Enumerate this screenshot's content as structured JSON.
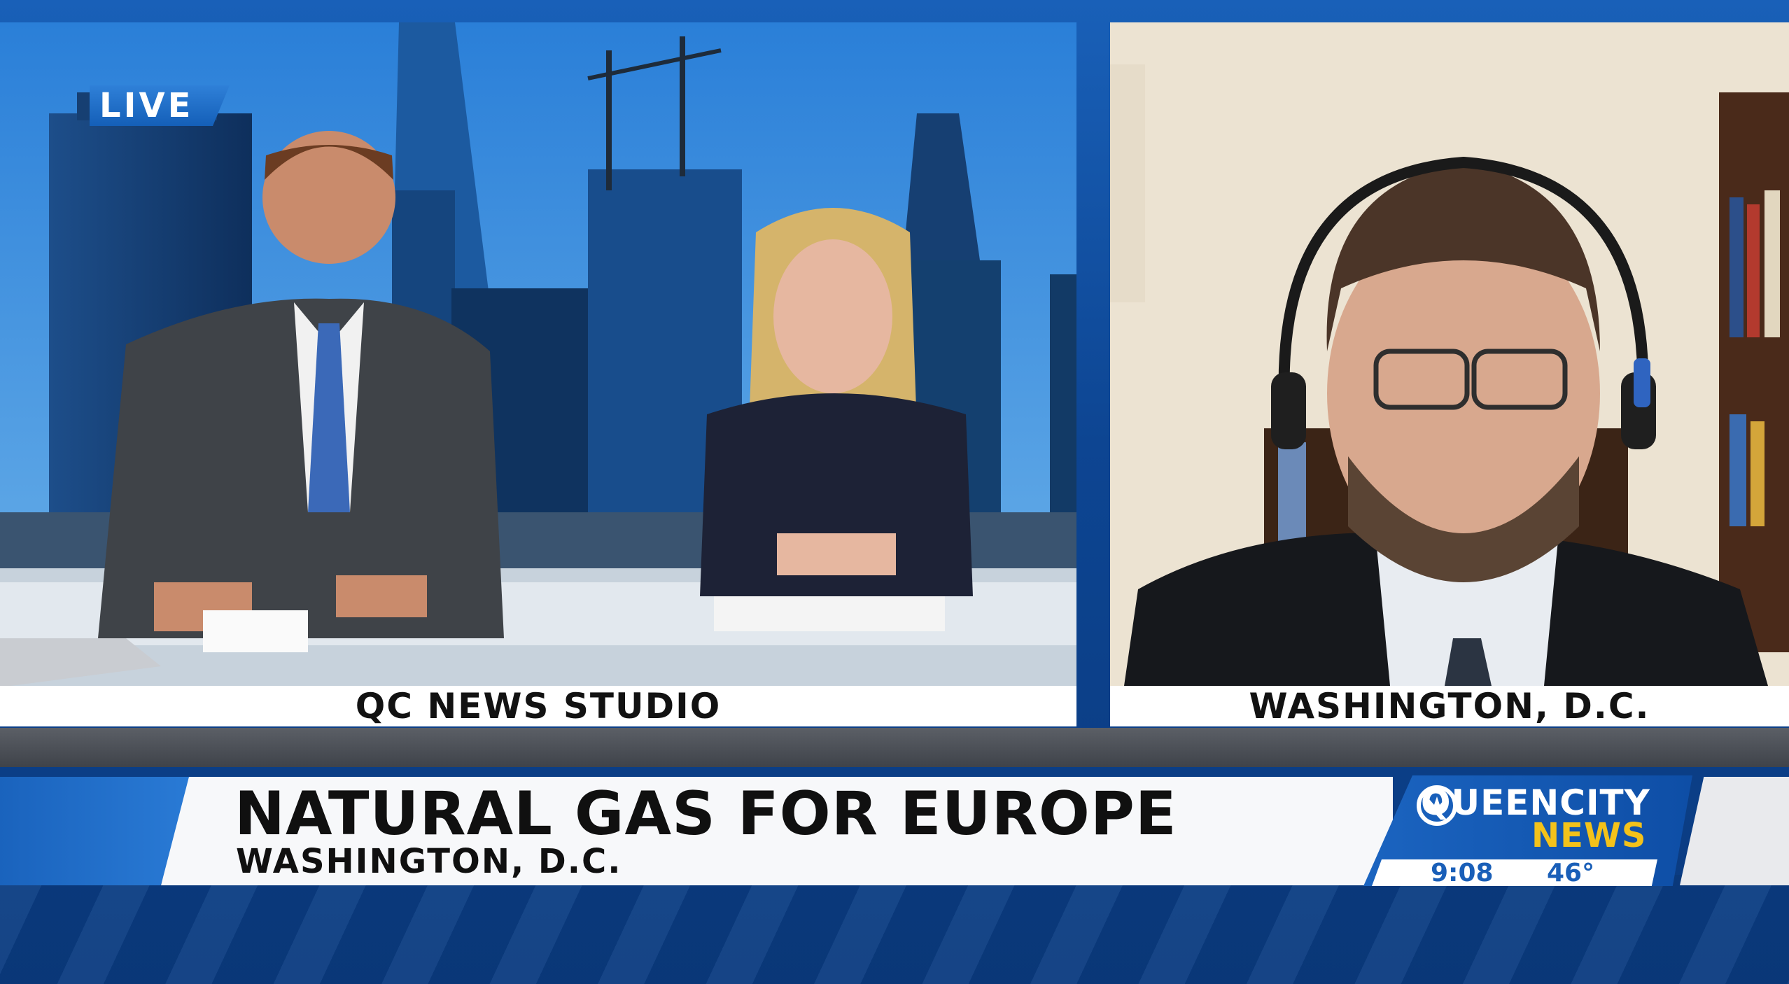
{
  "live_badge": "LIVE",
  "studio_label": "QC NEWS STUDIO",
  "remote_label": "WASHINGTON, D.C.",
  "headline": "NATURAL GAS FOR EUROPE",
  "subline": "WASHINGTON, D.C.",
  "logo": {
    "line1": "QUEENCITY",
    "line2": "NEWS",
    "icon": "crown-icon"
  },
  "time": "9:08",
  "temperature": "46°",
  "colors": {
    "brand_blue": "#1a5fb8",
    "accent_yellow": "#f3c21a"
  }
}
